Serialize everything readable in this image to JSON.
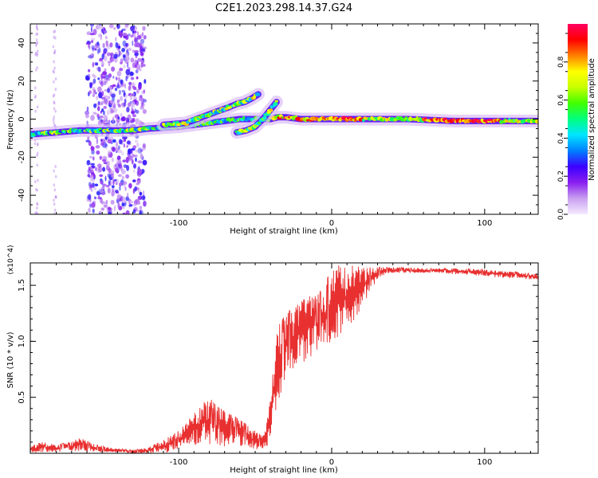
{
  "figure": {
    "title": "C2E1.2023.298.14.37.G24"
  },
  "chart_data": [
    {
      "type": "heatmap",
      "name": "spectrogram",
      "xlabel": "Height of straight line (km)",
      "ylabel": "Frequency (Hz)",
      "xlim": [
        -197,
        135
      ],
      "ylim": [
        -50,
        50
      ],
      "x_ticks": [
        -100,
        0,
        100
      ],
      "x_tick_labels": [
        "-100",
        "0",
        "100"
      ],
      "y_ticks": [
        -40,
        -20,
        0,
        20,
        40
      ],
      "y_tick_labels": [
        "-40",
        "-20",
        "0",
        "20",
        "40"
      ],
      "colorbar": {
        "label": "Normalized spectral amplitude",
        "range": [
          0,
          1
        ],
        "ticks": [
          0.0,
          0.2,
          0.4,
          0.6,
          0.8
        ],
        "tick_labels": [
          "0.0",
          "0.2",
          "0.4",
          "0.6",
          "0.8"
        ],
        "stops": [
          "#f5e9ff",
          "#c9a0f0",
          "#8a1ff0",
          "#3c00ff",
          "#0080ff",
          "#00e5ff",
          "#00ff80",
          "#40ff00",
          "#c8ff00",
          "#ffff00",
          "#ff8000",
          "#ff0000",
          "#ff0060"
        ]
      },
      "ridges": [
        {
          "name": "main-ridge",
          "x": [
            -197,
            -180,
            -165,
            -150,
            -130,
            -120,
            -100,
            -80,
            -70,
            -60,
            -50,
            -45,
            -40,
            -35,
            -30,
            -20,
            -10,
            0,
            20,
            50,
            80,
            100,
            120,
            135
          ],
          "y": [
            -8,
            -7,
            -6,
            -6,
            -6,
            -5,
            -4,
            -2,
            -1,
            0,
            0,
            0,
            0,
            1,
            1,
            0,
            0,
            0,
            0,
            0,
            -1,
            -1,
            -1,
            -1
          ]
        },
        {
          "name": "upper-branch",
          "x": [
            -110,
            -95,
            -85,
            -75,
            -68,
            -62,
            -57,
            -52,
            -48
          ],
          "y": [
            -3,
            -2,
            1,
            4,
            6,
            8,
            9,
            11,
            13
          ]
        },
        {
          "name": "lower-branch",
          "x": [
            -62,
            -56,
            -50,
            -45,
            -41,
            -38,
            -36
          ],
          "y": [
            -7,
            -6,
            -4,
            0,
            4,
            7,
            9
          ]
        }
      ],
      "scatter_band": {
        "x_range": [
          -160,
          -122
        ],
        "y_range": [
          -50,
          50
        ]
      }
    },
    {
      "type": "line",
      "name": "snr",
      "xlabel": "Height of straight line (km)",
      "ylabel": "SNR (10 * v/v)",
      "y_multiplier": "(x10^4)",
      "xlim": [
        -197,
        135
      ],
      "ylim": [
        0,
        1.7
      ],
      "x_ticks": [
        -100,
        0,
        100
      ],
      "x_tick_labels": [
        "-100",
        "0",
        "100"
      ],
      "y_ticks": [
        0.5,
        1.0,
        1.5
      ],
      "y_tick_labels": [
        "0.5",
        "1.0",
        "1.5"
      ],
      "line_color": "#e83030",
      "envelope": {
        "x": [
          -197,
          -190,
          -180,
          -170,
          -165,
          -155,
          -145,
          -130,
          -120,
          -110,
          -100,
          -95,
          -90,
          -85,
          -80,
          -75,
          -70,
          -65,
          -60,
          -55,
          -50,
          -45,
          -42,
          -38,
          -35,
          -32,
          -30,
          -25,
          -20,
          -15,
          -10,
          -5,
          0,
          5,
          10,
          15,
          20,
          25,
          30,
          35,
          40,
          45,
          50,
          60,
          70,
          80,
          90,
          100,
          110,
          120,
          135
        ],
        "low": [
          0.0,
          0.01,
          0.01,
          0.02,
          0.02,
          0.01,
          0.01,
          0.0,
          0.0,
          0.0,
          0.03,
          0.05,
          0.07,
          0.08,
          0.08,
          0.07,
          0.06,
          0.05,
          0.04,
          0.03,
          0.03,
          0.03,
          0.05,
          0.25,
          0.45,
          0.6,
          0.7,
          0.75,
          0.8,
          0.85,
          0.9,
          0.95,
          1.0,
          1.05,
          1.1,
          1.2,
          1.3,
          1.45,
          1.55,
          1.6,
          1.6,
          1.61,
          1.61,
          1.61,
          1.61,
          1.6,
          1.59,
          1.58,
          1.57,
          1.56,
          1.55
        ],
        "high": [
          0.06,
          0.1,
          0.08,
          0.1,
          0.14,
          0.08,
          0.05,
          0.03,
          0.05,
          0.12,
          0.2,
          0.28,
          0.35,
          0.45,
          0.5,
          0.42,
          0.38,
          0.34,
          0.3,
          0.25,
          0.2,
          0.15,
          0.3,
          0.9,
          1.15,
          1.2,
          1.25,
          1.3,
          1.35,
          1.42,
          1.4,
          1.5,
          1.65,
          1.68,
          1.66,
          1.68,
          1.66,
          1.66,
          1.66,
          1.66,
          1.66,
          1.66,
          1.66,
          1.65,
          1.65,
          1.65,
          1.65,
          1.64,
          1.63,
          1.62,
          1.6
        ]
      }
    }
  ]
}
